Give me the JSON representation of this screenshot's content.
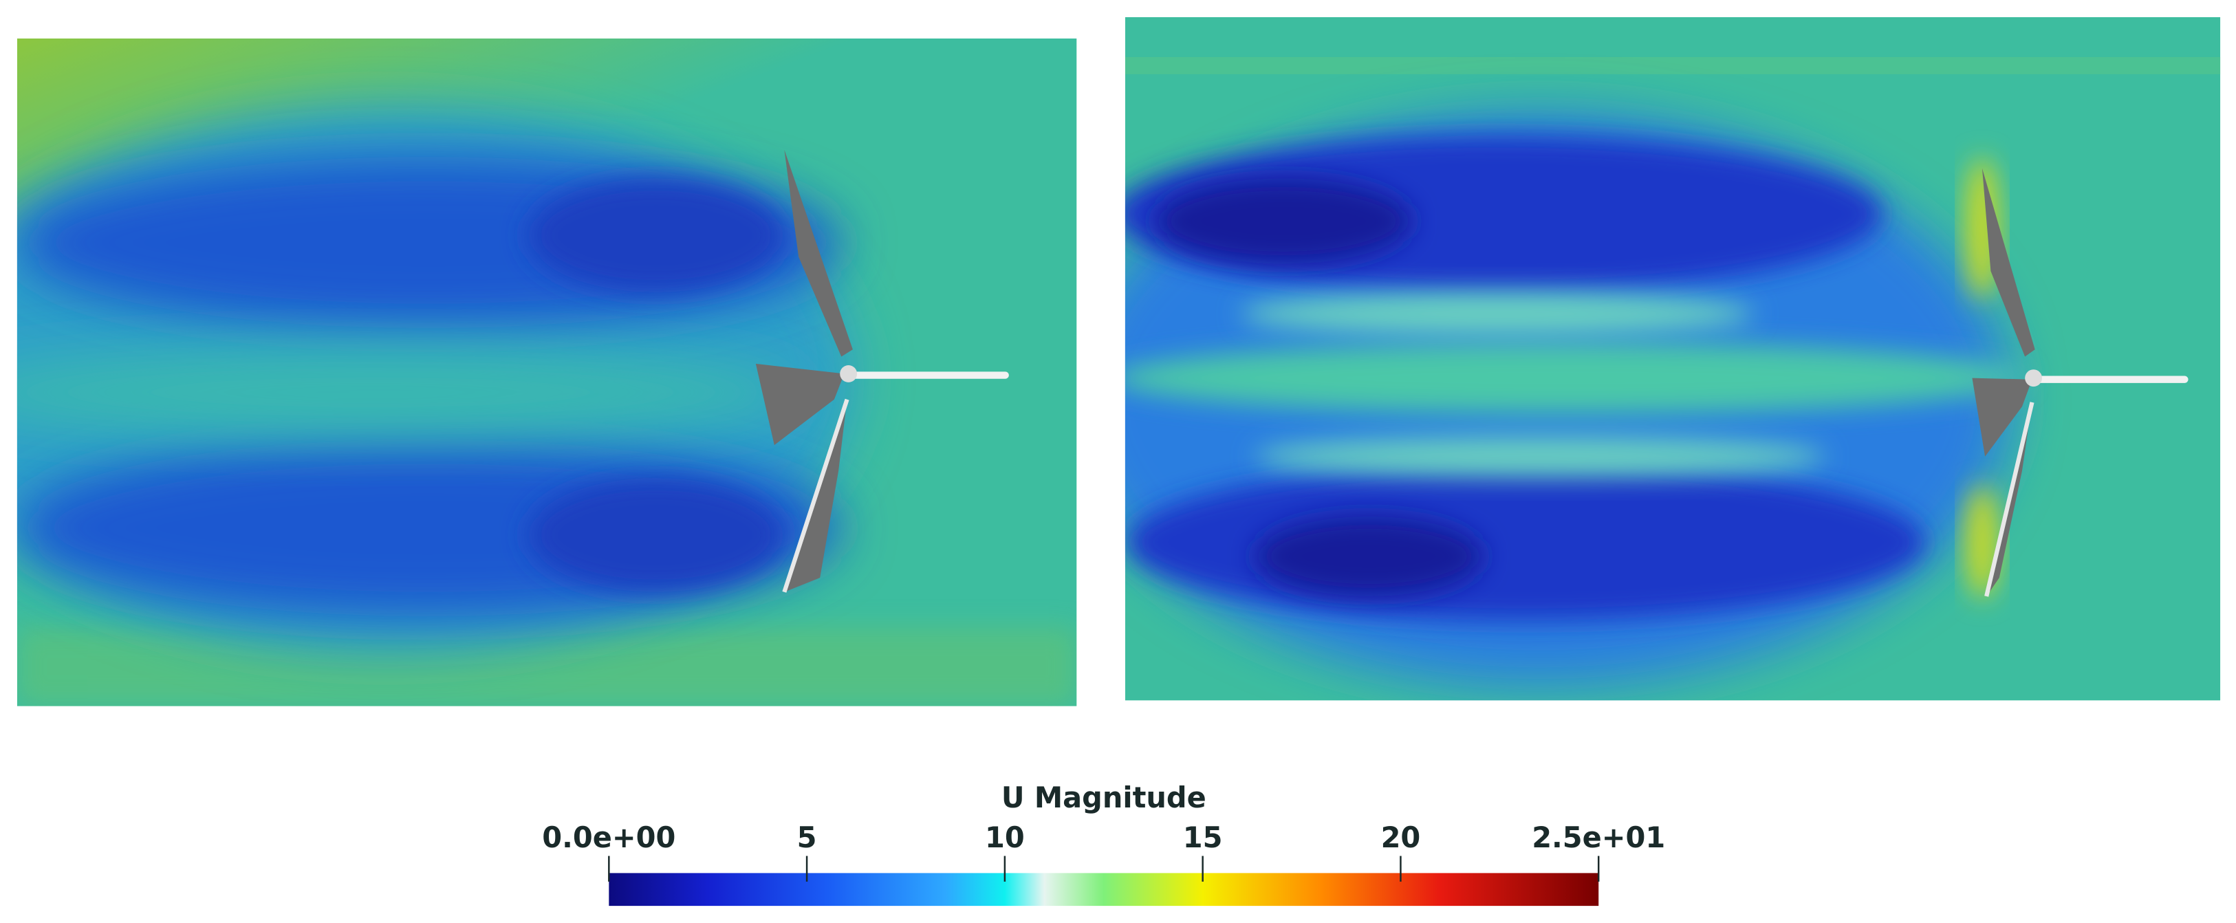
{
  "colorbar": {
    "title": "U Magnitude",
    "range": [
      0,
      25
    ],
    "ticks": [
      {
        "value": 0,
        "label": "0.0e+00"
      },
      5,
      10,
      15,
      20,
      {
        "value": 25,
        "label": "2.5e+01"
      }
    ]
  }
}
